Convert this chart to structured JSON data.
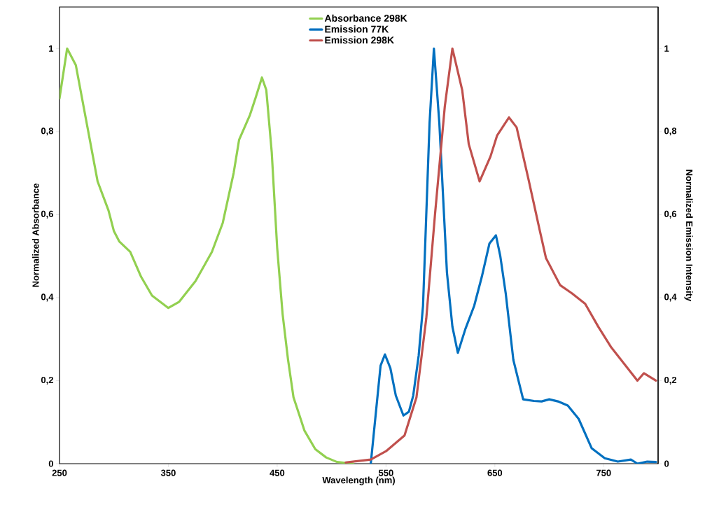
{
  "chart_data": {
    "type": "line",
    "xlabel": "Wavelength (nm)",
    "ylabel": "Normalized Absorbance",
    "y2label": "Normalized Emission Intensity",
    "xlim": [
      250,
      800
    ],
    "xticks": [
      250,
      350,
      450,
      550,
      650,
      750
    ],
    "ylim": [
      0,
      1.1
    ],
    "yticks": [
      0,
      {
        "value": 0.2,
        "label": "0,2"
      },
      {
        "value": 0.4,
        "label": "0,4"
      },
      {
        "value": 0.6,
        "label": "0,6"
      },
      {
        "value": 0.8,
        "label": "0,8"
      },
      1
    ],
    "y2lim": [
      0,
      1.1
    ],
    "y2ticks": [
      0,
      {
        "value": 0.2,
        "label": "0,2"
      },
      {
        "value": 0.4,
        "label": "0,4"
      },
      {
        "value": 0.6,
        "label": "0,6"
      },
      {
        "value": 0.8,
        "label": "0,8"
      },
      1
    ],
    "legend": "top",
    "series": [
      {
        "name": "Absorbance 298K",
        "color": "#92d050",
        "axis": "y",
        "x": [
          250,
          257,
          265,
          275,
          285,
          295,
          300,
          305,
          315,
          325,
          335,
          350,
          360,
          375,
          390,
          400,
          410,
          415,
          425,
          430,
          436,
          440,
          445,
          450,
          455,
          460,
          465,
          470,
          475,
          485,
          495,
          505,
          520
        ],
        "values": [
          0.88,
          1.0,
          0.96,
          0.82,
          0.68,
          0.61,
          0.56,
          0.535,
          0.51,
          0.45,
          0.405,
          0.375,
          0.39,
          0.44,
          0.51,
          0.58,
          0.7,
          0.78,
          0.84,
          0.88,
          0.93,
          0.9,
          0.75,
          0.52,
          0.36,
          0.25,
          0.16,
          0.12,
          0.08,
          0.035,
          0.015,
          0.004,
          0
        ]
      },
      {
        "name": "Emission 77K",
        "color": "#0070c0",
        "axis": "y2",
        "x": [
          536,
          545,
          549,
          554,
          559,
          566,
          571,
          575,
          580,
          584,
          590,
          594,
          599,
          606,
          611,
          616,
          623,
          631,
          638,
          645,
          651,
          655,
          660,
          667,
          676,
          686,
          693,
          700,
          708,
          717,
          727,
          739,
          751,
          763,
          775,
          781,
          790,
          798
        ],
        "values": [
          0,
          0.236,
          0.263,
          0.23,
          0.164,
          0.116,
          0.125,
          0.164,
          0.26,
          0.38,
          0.82,
          1.0,
          0.82,
          0.46,
          0.33,
          0.267,
          0.325,
          0.38,
          0.45,
          0.53,
          0.55,
          0.5,
          0.41,
          0.25,
          0.155,
          0.151,
          0.15,
          0.155,
          0.15,
          0.14,
          0.108,
          0.037,
          0.013,
          0.005,
          0.01,
          0,
          0.005,
          0.004
        ]
      },
      {
        "name": "Emission 298K",
        "color": "#c0504d",
        "axis": "y2",
        "x": [
          513,
          536,
          550,
          567,
          578,
          587,
          595,
          604,
          611,
          620,
          626,
          636,
          646,
          652,
          663,
          670,
          681,
          691,
          697,
          710,
          721,
          733,
          745,
          757,
          769,
          781,
          787,
          798
        ],
        "values": [
          0.003,
          0.01,
          0.03,
          0.068,
          0.16,
          0.35,
          0.6,
          0.86,
          1.0,
          0.9,
          0.77,
          0.68,
          0.74,
          0.79,
          0.834,
          0.81,
          0.684,
          0.565,
          0.495,
          0.43,
          0.41,
          0.385,
          0.33,
          0.28,
          0.24,
          0.2,
          0.218,
          0.2
        ]
      }
    ]
  }
}
